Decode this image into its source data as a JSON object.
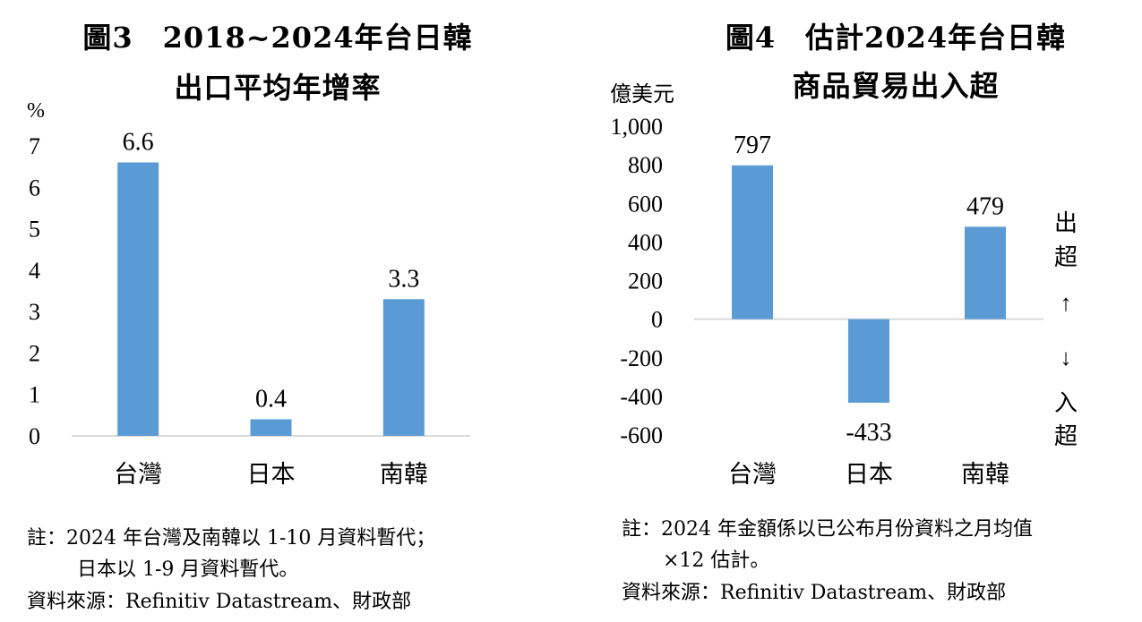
{
  "chart_data": [
    {
      "type": "bar",
      "title_line1": "圖3　2018~2024年台日韓",
      "title_line2": "出口平均年增率",
      "unit": "%",
      "categories": [
        "台灣",
        "日本",
        "南韓"
      ],
      "values": [
        6.6,
        0.4,
        3.3
      ],
      "value_labels": [
        "6.6",
        "0.4",
        "3.3"
      ],
      "ylim": [
        0,
        7
      ],
      "yticks": [
        "0",
        "1",
        "2",
        "3",
        "4",
        "5",
        "6",
        "7"
      ],
      "color": "#5b9bd5",
      "note_line1": "註：2024 年台灣及南韓以 1-10 月資料暫代；",
      "note_line2": "日本以 1-9 月資料暫代。",
      "source": "資料來源：Refinitiv Datastream、財政部"
    },
    {
      "type": "bar",
      "title_line1": "圖4　估計2024年台日韓",
      "title_line2": "商品貿易出入超",
      "unit": "億美元",
      "categories": [
        "台灣",
        "日本",
        "南韓"
      ],
      "values": [
        797,
        -433,
        479
      ],
      "value_labels": [
        "797",
        "-433",
        "479"
      ],
      "ylim": [
        -600,
        1000
      ],
      "yticks": [
        "-600",
        "-400",
        "-200",
        "0",
        "200",
        "400",
        "600",
        "800",
        "1,000"
      ],
      "color": "#5b9bd5",
      "surplus_label": [
        "出",
        "超"
      ],
      "deficit_label": [
        "入",
        "超"
      ],
      "up_arrow": "↑",
      "down_arrow": "↓",
      "note_line1": "註：2024 年金額係以已公布月份資料之月均值",
      "note_line2": "×12 估計。",
      "source": "資料來源：Refinitiv Datastream、財政部"
    }
  ]
}
